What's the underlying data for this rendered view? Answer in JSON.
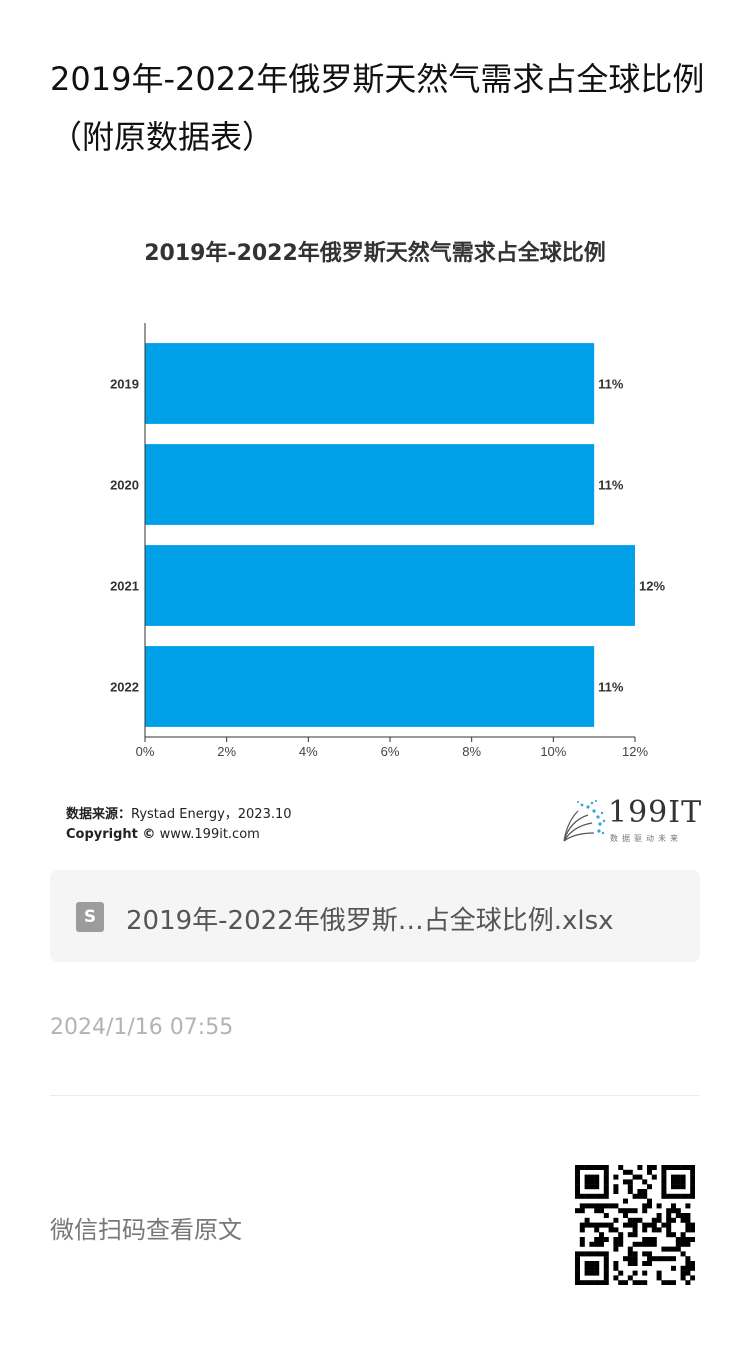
{
  "page": {
    "title": "2019年-2022年俄罗斯天然气需求占全球比例（附原数据表）",
    "source_label": "数据来源：",
    "source_value": "Rystad Energy，2023.10",
    "copyright_label": "Copyright ©",
    "copyright_value": "www.199it.com",
    "brand_name": "199IT",
    "brand_tagline": "数据驱动未来",
    "file_icon_letter": "S",
    "file_name": "2019年-2022年俄罗斯…占全球比例.xlsx",
    "timestamp": "2024/1/16 07:55",
    "scan_text": "微信扫码查看原文"
  },
  "chart_data": {
    "type": "bar",
    "orientation": "horizontal",
    "title": "2019年-2022年俄罗斯天然气需求占全球比例",
    "categories": [
      "2019",
      "2020",
      "2021",
      "2022"
    ],
    "values": [
      11,
      11,
      12,
      11
    ],
    "value_labels": [
      "11%",
      "11%",
      "12%",
      "11%"
    ],
    "xlim": [
      0,
      12
    ],
    "x_ticks": [
      0,
      2,
      4,
      6,
      8,
      10,
      12
    ],
    "x_tick_labels": [
      "0%",
      "2%",
      "4%",
      "6%",
      "8%",
      "10%",
      "12%"
    ],
    "grid": false,
    "bar_color": "#00A0E9"
  }
}
